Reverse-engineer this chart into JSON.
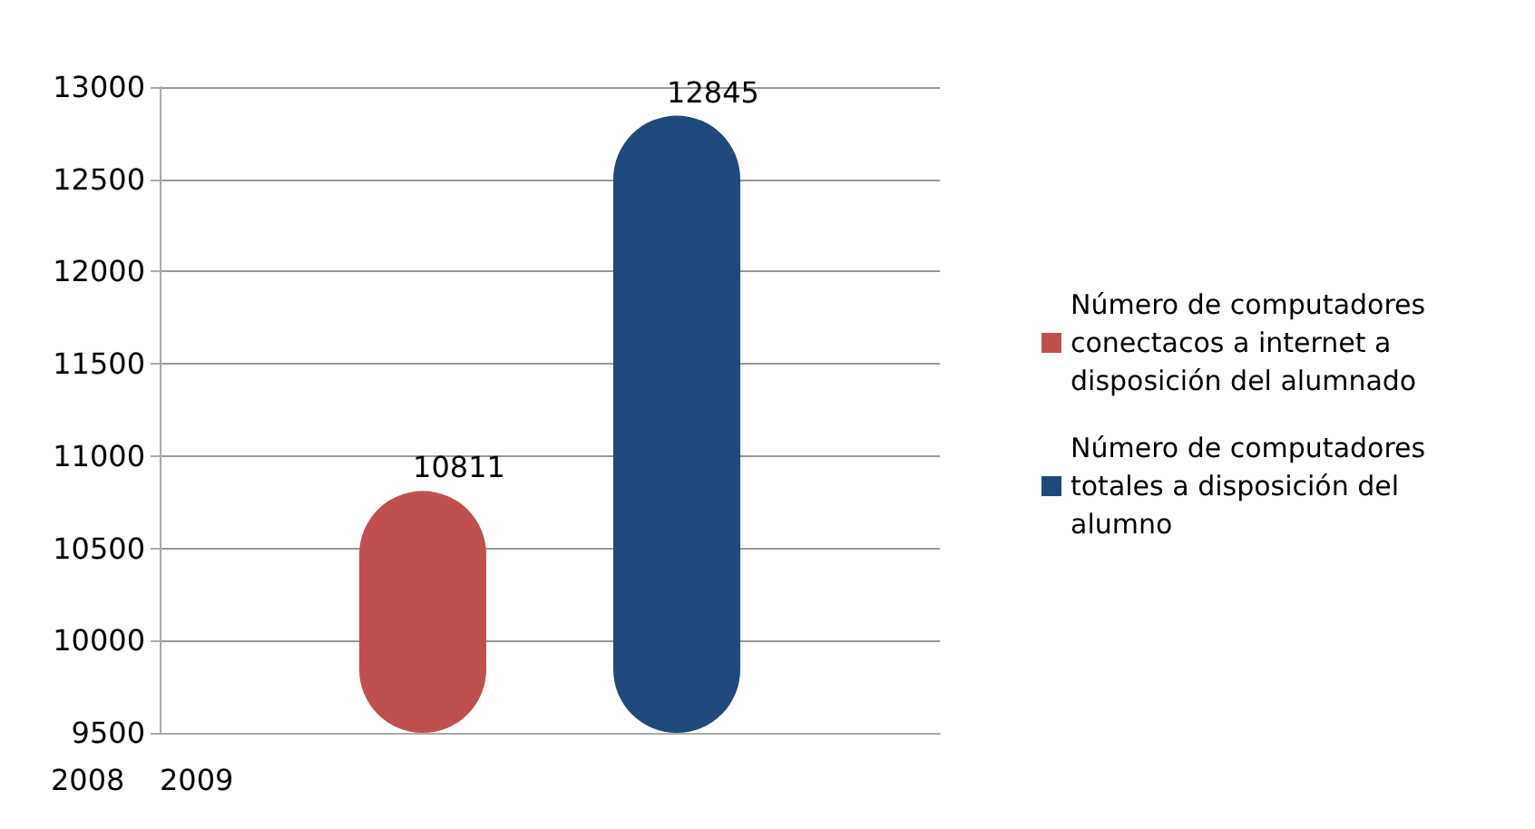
{
  "chart_data": {
    "type": "bar",
    "categories": [
      null
    ],
    "series": [
      {
        "name": "Número de computadores conectacos a internet a disposición del alumnado",
        "color": "#c0504d",
        "values": [
          10811
        ]
      },
      {
        "name": "Número de computadores totales a disposición del alumno",
        "color": "#1f497d",
        "values": [
          12845
        ]
      }
    ],
    "ylim": [
      9500,
      13000
    ],
    "yticks": [
      9500,
      10000,
      10500,
      11000,
      11500,
      12000,
      12500,
      13000
    ],
    "grid": "y",
    "legend": "right",
    "data_labels": true,
    "annotations": [
      "2008",
      "2009"
    ]
  }
}
